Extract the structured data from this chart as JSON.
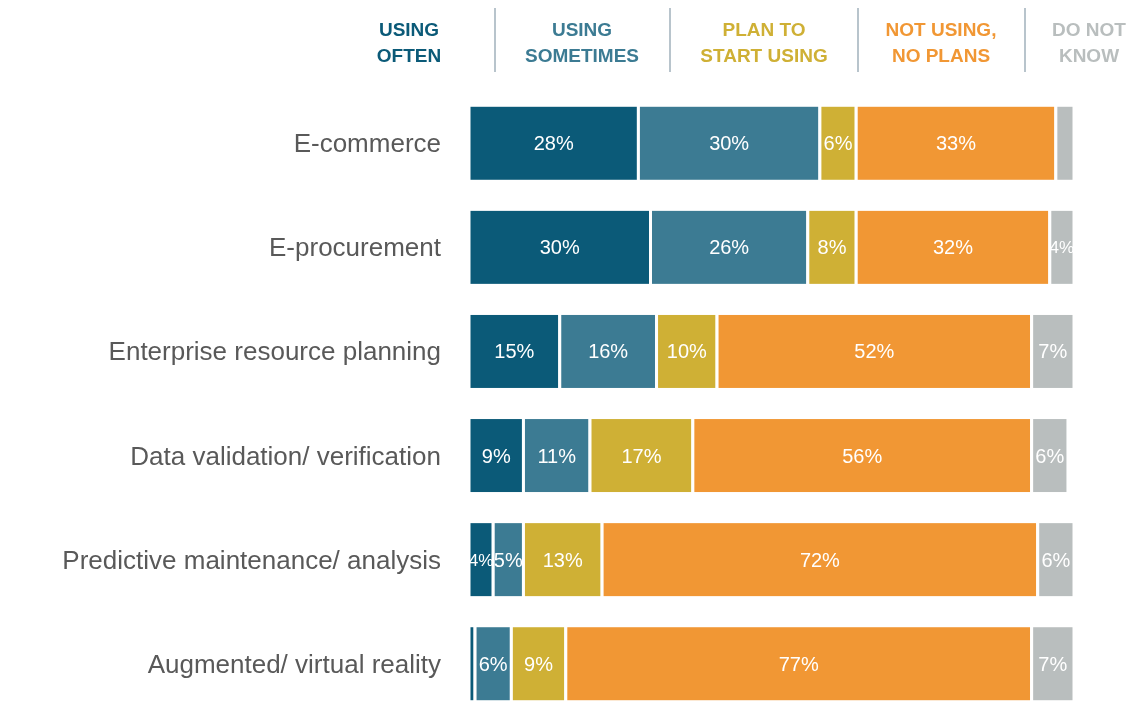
{
  "chart_data": {
    "type": "bar",
    "orientation": "horizontal",
    "stacked": true,
    "legend": "top",
    "categories": [
      "E-commerce",
      "E-procurement",
      "Enterprise resource planning",
      "Data validation/ verification",
      "Predictive maintenance/ analysis",
      "Augmented/ virtual reality"
    ],
    "series": [
      {
        "name": "USING OFTEN",
        "color": "#0b5a78",
        "values": [
          28,
          30,
          15,
          9,
          4,
          1
        ],
        "value_labels": [
          "28%",
          "30%",
          "15%",
          "9%",
          "4%",
          null
        ]
      },
      {
        "name": "USING SOMETIMES",
        "color": "#3c7b93",
        "values": [
          30,
          26,
          16,
          11,
          5,
          6
        ],
        "value_labels": [
          "30%",
          "26%",
          "16%",
          "11%",
          "5%",
          "6%"
        ]
      },
      {
        "name": "PLAN TO START USING",
        "color": "#cfb035",
        "values": [
          6,
          8,
          10,
          17,
          13,
          9
        ],
        "value_labels": [
          "6%",
          "8%",
          "10%",
          "17%",
          "13%",
          "9%"
        ]
      },
      {
        "name": "NOT USING, NO PLANS",
        "color": "#f19734",
        "values": [
          33,
          32,
          52,
          56,
          72,
          77
        ],
        "value_labels": [
          "33%",
          "32%",
          "52%",
          "56%",
          "72%",
          "77%"
        ]
      },
      {
        "name": "DO NOT KNOW",
        "color": "#b9bebe",
        "values": [
          3,
          4,
          7,
          6,
          6,
          7
        ],
        "value_labels": [
          null,
          "4%",
          "7%",
          "6%",
          "6%",
          "7%"
        ]
      }
    ]
  }
}
